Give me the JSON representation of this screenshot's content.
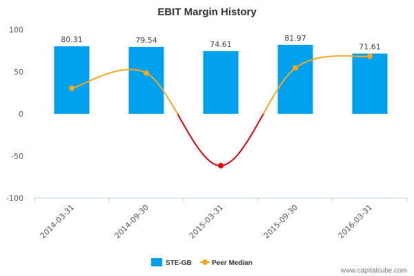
{
  "chart_data": {
    "type": "bar",
    "title": "EBIT Margin History",
    "xlabel": "",
    "ylabel": "",
    "ylim": [
      -100,
      100
    ],
    "yticks": [
      100,
      50,
      0,
      -50,
      -100
    ],
    "categories": [
      "2014-03-31",
      "2014-09-30",
      "2015-03-31",
      "2015-09-30",
      "2016-03-31"
    ],
    "series": [
      {
        "name": "STE-GB",
        "type": "bar",
        "values": [
          80.31,
          79.54,
          74.61,
          81.97,
          71.61
        ],
        "labels": [
          "80.31",
          "79.54",
          "74.61",
          "81.97",
          "71.61"
        ],
        "color": "#00A2ED"
      },
      {
        "name": "Peer Median",
        "type": "line",
        "values": [
          30.5,
          48.5,
          -61.5,
          54.5,
          68.5
        ],
        "color": "#F5A623",
        "negative_color": "#E8000B"
      }
    ],
    "legend_position": "bottom-center",
    "grid": false
  },
  "source": "www.capitalcube.com"
}
